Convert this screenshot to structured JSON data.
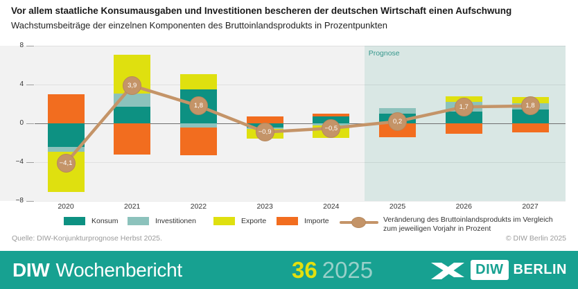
{
  "header": {
    "title": "Vor allem staatliche Konsumausgaben und Investitionen bescheren der deutschen Wirtschaft einen Aufschwung",
    "subtitle": "Wachstumsbeiträge der einzelnen Komponenten des Bruttoinlandsprodukts in Prozentpunkten"
  },
  "chart_data": {
    "type": "bar",
    "subtype": "stacked-bars-with-line",
    "categories": [
      "2020",
      "2021",
      "2022",
      "2023",
      "2024",
      "2025",
      "2026",
      "2027"
    ],
    "series": [
      {
        "name": "Konsum",
        "color": "#0d9182",
        "values": [
          -2.4,
          1.7,
          3.5,
          -0.4,
          0.7,
          1.0,
          1.2,
          1.4
        ]
      },
      {
        "name": "Investitionen",
        "color": "#8cc2bc",
        "values": [
          -0.5,
          1.4,
          -0.4,
          -0.2,
          -0.2,
          0.6,
          1.0,
          0.7
        ]
      },
      {
        "name": "Exporte",
        "color": "#dfe00f",
        "values": [
          -4.2,
          4.0,
          1.6,
          -1.0,
          -1.3,
          0.0,
          0.6,
          0.6
        ]
      },
      {
        "name": "Importe",
        "color": "#f26d1f",
        "values": [
          3.0,
          -3.2,
          -2.9,
          0.7,
          0.3,
          -1.4,
          -1.1,
          -0.9
        ]
      }
    ],
    "line": {
      "name": "Veränderung des Bruttoinlandsprodukts",
      "color": "#c49468",
      "values": [
        -4.1,
        3.9,
        1.8,
        -0.9,
        -0.5,
        0.2,
        1.7,
        1.8
      ],
      "labels": [
        "−4,1",
        "3,9",
        "1,8",
        "−0,9",
        "−0,5",
        "0,2",
        "1,7",
        "1,8"
      ]
    },
    "yticks": [
      8,
      4,
      0,
      -4,
      -8
    ],
    "ylim": [
      -8,
      8
    ],
    "grid": true,
    "legend_position": "bottom",
    "prognose": {
      "label": "Prognose",
      "start_category": "2025",
      "band_color": "#d9e7e4"
    }
  },
  "legend": {
    "line_label_1": "Veränderung des Bruttoinlandsprodukts im Vergleich",
    "line_label_2": "zum jeweiligen Vorjahr in Prozent"
  },
  "source": {
    "left": "Quelle: DIW-Konjunkturprognose Herbst 2025.",
    "right": "© DIW Berlin 2025"
  },
  "footer": {
    "brand_bold": "DIW",
    "brand_regular": "Wochenbericht",
    "issue_number": "36",
    "issue_year": "2025",
    "logo_diw": "DIW",
    "logo_berlin": "BERLIN",
    "bar_color": "#17a191",
    "issue_number_color": "#e3e00e"
  }
}
